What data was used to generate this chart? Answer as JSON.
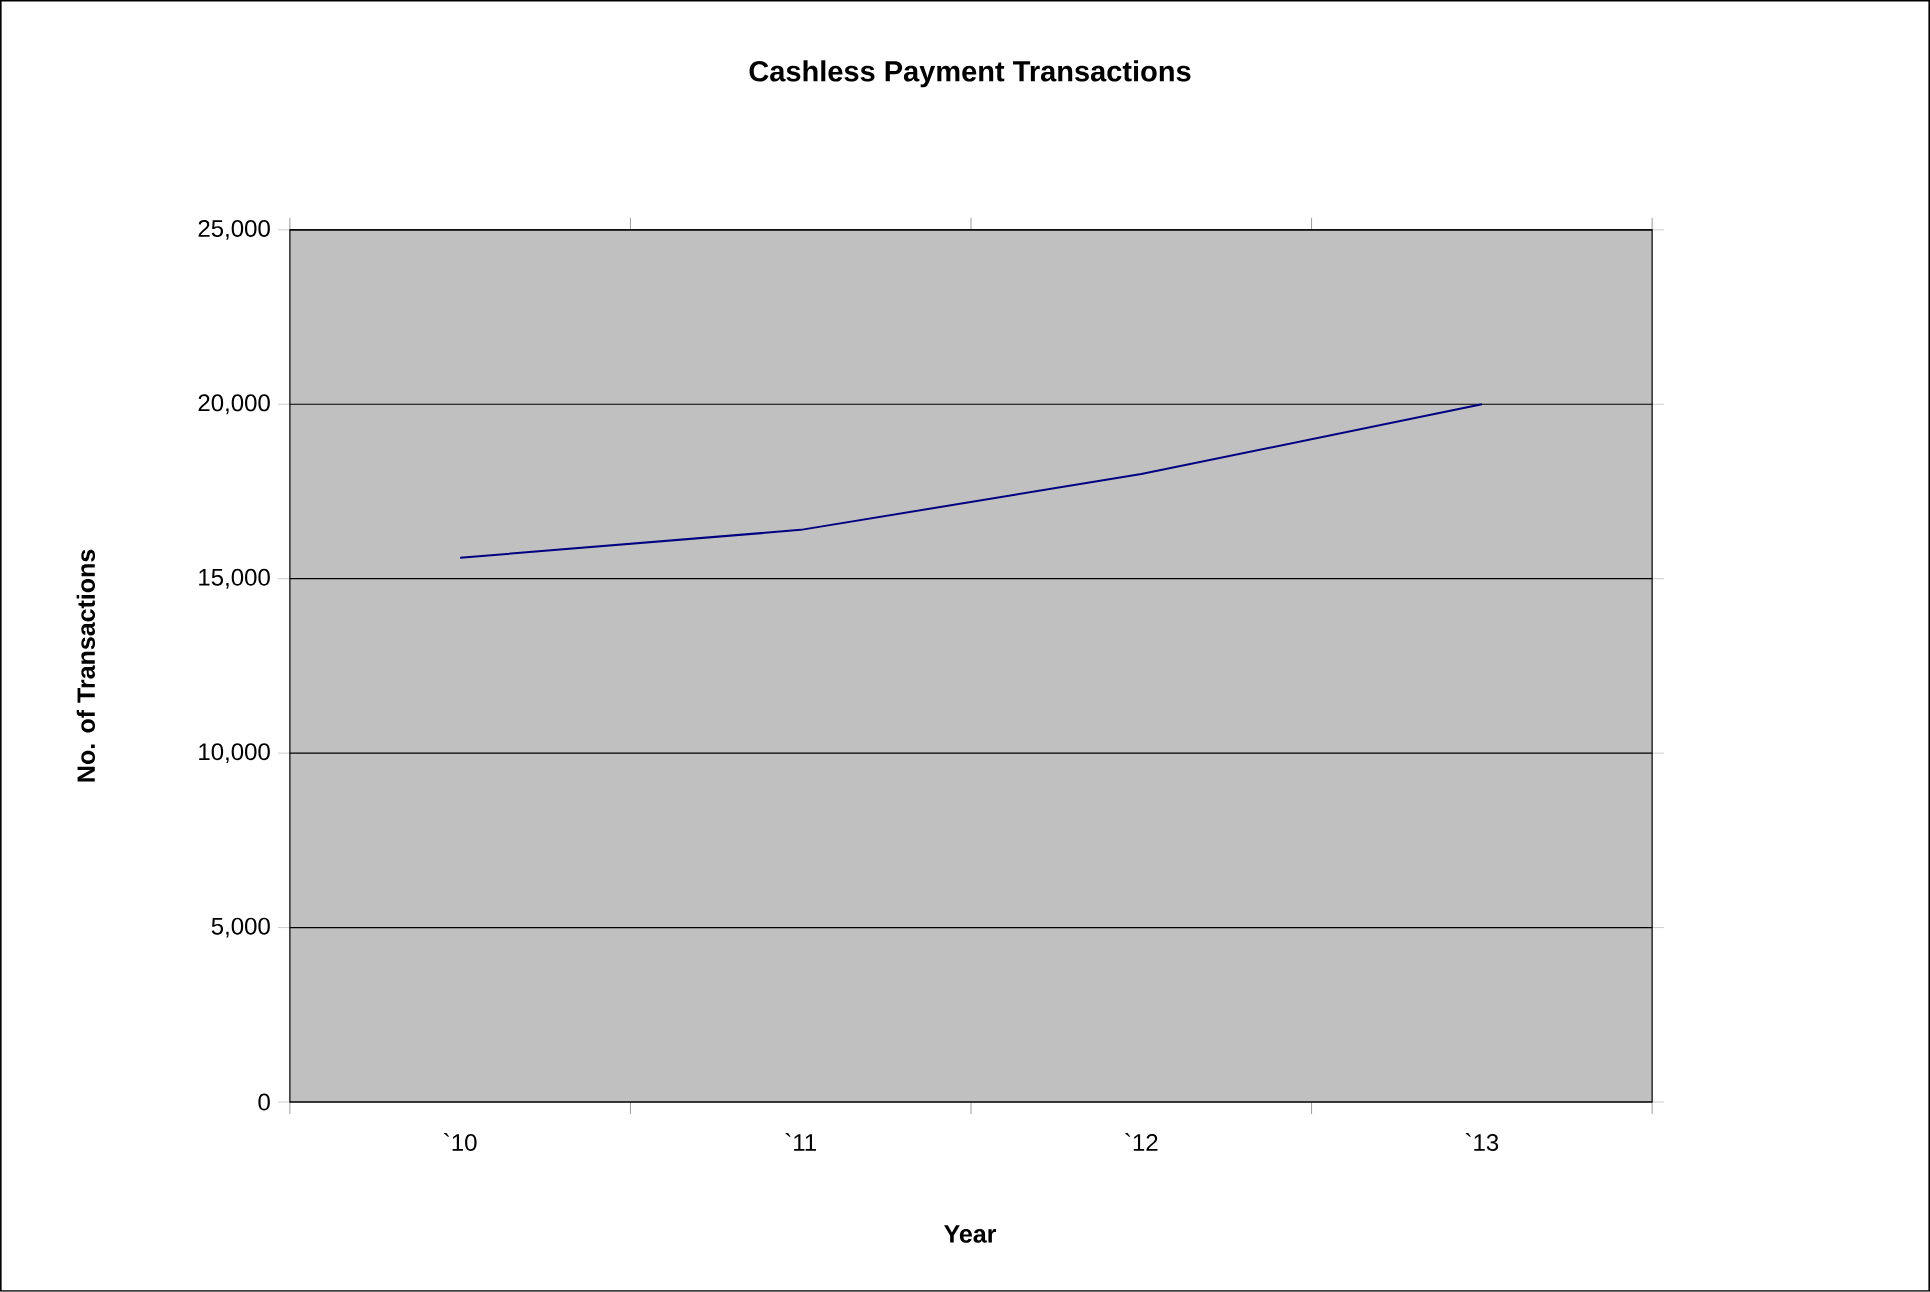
{
  "chart_data": {
    "type": "line",
    "title": "Cashless Payment Transactions",
    "xlabel": "Year",
    "ylabel": "No. of Transactions",
    "categories": [
      "`10",
      "`11",
      "`12",
      "`13"
    ],
    "series": [
      {
        "color": "#000080",
        "values": [
          15600,
          16400,
          18000,
          20000
        ]
      }
    ],
    "ylim": [
      0,
      25000
    ],
    "yticks": [
      {
        "value": 0,
        "label": "0"
      },
      {
        "value": 5000,
        "label": "5,000"
      },
      {
        "value": 10000,
        "label": "10,000"
      },
      {
        "value": 15000,
        "label": "15,000"
      },
      {
        "value": 20000,
        "label": "20,000"
      },
      {
        "value": 25000,
        "label": "25,000"
      }
    ],
    "grid": "y",
    "marker": "none",
    "line_style": "solid"
  }
}
